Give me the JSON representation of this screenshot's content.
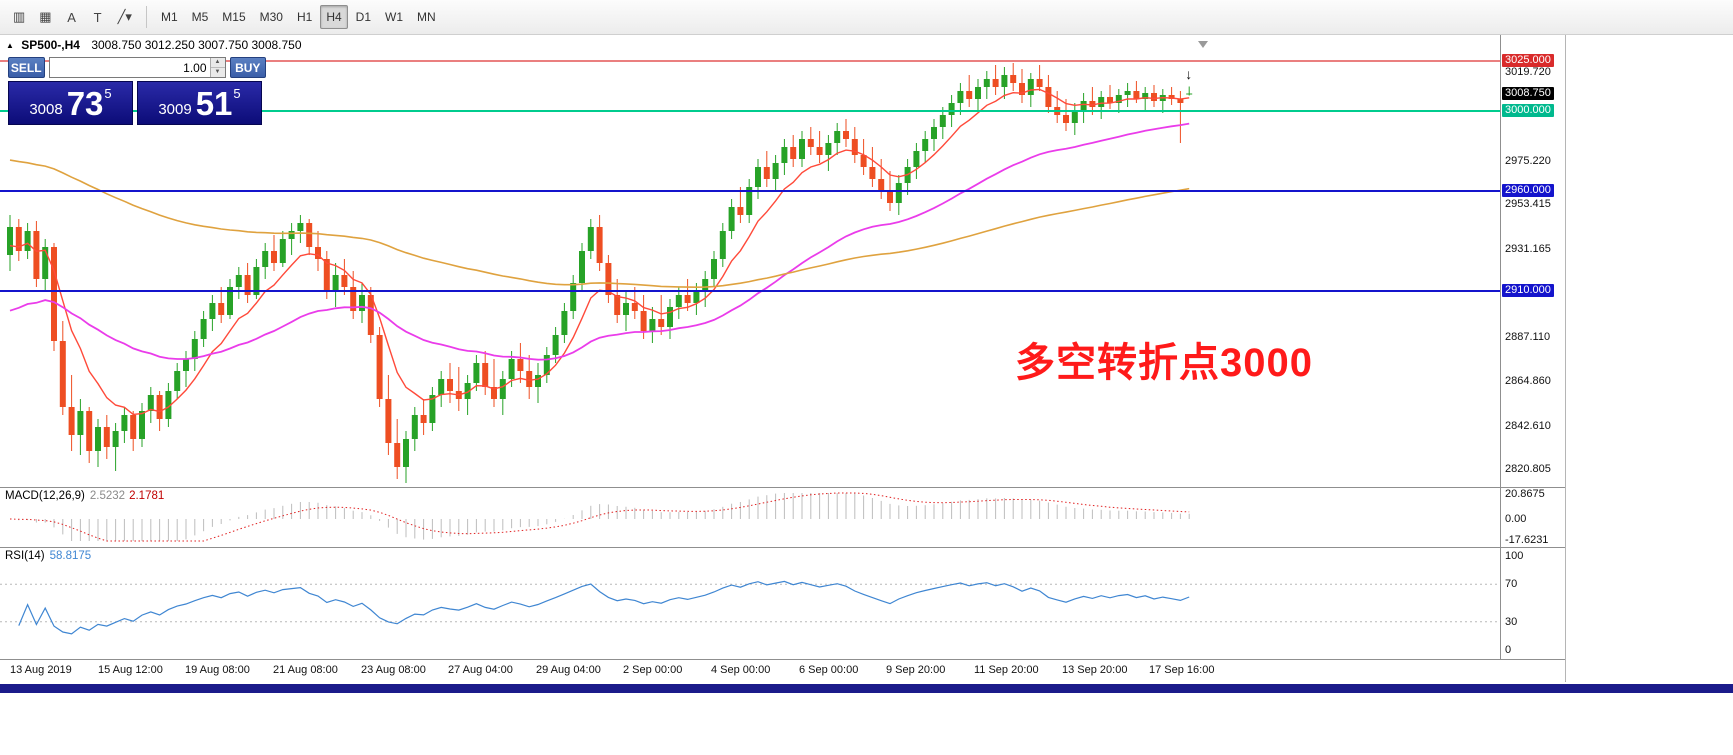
{
  "toolbar": {
    "tools": [
      {
        "name": "chart-type-icon",
        "glyph": "▥"
      },
      {
        "name": "grid-icon",
        "glyph": "▦"
      },
      {
        "name": "annotation-a-icon",
        "glyph": "A"
      },
      {
        "name": "text-tool-icon",
        "glyph": "T"
      },
      {
        "name": "draw-tools-icon",
        "glyph": "╱▾"
      }
    ],
    "timeframes": [
      {
        "label": "M1",
        "active": false
      },
      {
        "label": "M5",
        "active": false
      },
      {
        "label": "M15",
        "active": false
      },
      {
        "label": "M30",
        "active": false
      },
      {
        "label": "H1",
        "active": false
      },
      {
        "label": "H4",
        "active": true
      },
      {
        "label": "D1",
        "active": false
      },
      {
        "label": "W1",
        "active": false
      },
      {
        "label": "MN",
        "active": false
      }
    ]
  },
  "chart_header": {
    "expand_icon": "▲",
    "symbol_tf": "SP500-,H4",
    "ohlc": "3008.750 3012.250 3007.750 3008.750"
  },
  "trade_panel": {
    "sell_label": "SELL",
    "buy_label": "BUY",
    "volume": "1.00",
    "spinner_up": "▲",
    "spinner_down": "▼",
    "sell_price_small": "3008",
    "sell_price_big": "73",
    "sell_price_sup": "5",
    "buy_price_small": "3009",
    "buy_price_big": "51",
    "buy_price_sup": "5"
  },
  "annotation": {
    "text": "多空转折点3000",
    "color": "#ff1a1a"
  },
  "indicators": {
    "macd": {
      "name": "MACD(12,26,9)",
      "main": "2.5232",
      "signal": "2.1781",
      "axis": {
        "max": "20.8675",
        "zero": "0.00",
        "min": "-17.6231"
      },
      "max_val": 20.8675,
      "min_val": -17.6231
    },
    "rsi": {
      "name": "RSI(14)",
      "value": "58.8175",
      "axis": [
        "100",
        "70",
        "30",
        "0"
      ],
      "levels": [
        70,
        30
      ]
    }
  },
  "chart_data": {
    "type": "candlestick",
    "symbol": "SP500-",
    "timeframe": "H4",
    "ylim": [
      2812,
      3038
    ],
    "x0": 10,
    "spacing": 8.8,
    "candle_width": 6,
    "colors": {
      "up": "#27a227",
      "down": "#ee4e22"
    },
    "hlines": [
      {
        "price": 3025.0,
        "label": "3025.000",
        "color": "#dd3333",
        "width": 1.3,
        "tag_bg": "#d92b2b"
      },
      {
        "price": 3000.0,
        "label": "3000.000",
        "color": "#00cc8e",
        "width": 2,
        "tag_bg": "#00b98e"
      },
      {
        "price": 2960.0,
        "label": "2960.000",
        "color": "#1414cc",
        "width": 2,
        "tag_bg": "#1414cc"
      },
      {
        "price": 2910.0,
        "label": "2910.000",
        "color": "#1414cc",
        "width": 2,
        "tag_bg": "#1414cc"
      }
    ],
    "current_price": {
      "price": 3008.75,
      "label": "3008.750",
      "tag_bg": "#000000"
    },
    "axis_labels": [
      {
        "price": 3019.72,
        "label": "3019.720"
      },
      {
        "price": 2975.22,
        "label": "2975.220"
      },
      {
        "price": 2953.415,
        "label": "2953.415"
      },
      {
        "price": 2931.165,
        "label": "2931.165"
      },
      {
        "price": 2887.11,
        "label": "2887.110"
      },
      {
        "price": 2864.86,
        "label": "2864.860"
      },
      {
        "price": 2842.61,
        "label": "2842.610"
      },
      {
        "price": 2820.805,
        "label": "2820.805"
      }
    ],
    "mas": [
      {
        "name": "fast-ma",
        "period": 8,
        "seed": 2930,
        "color": "#ff4a3a",
        "width": 1.4
      },
      {
        "name": "mid-ma",
        "period": 40,
        "seed": 2898,
        "color": "#ea3cea",
        "width": 1.8
      },
      {
        "name": "slow-ma",
        "period": 120,
        "seed": 2976,
        "color": "#dfa23f",
        "width": 1.6
      }
    ],
    "marker": {
      "glyph": "↓",
      "index": 134,
      "price": 3016
    },
    "candles": [
      [
        2928,
        2948,
        2920,
        2942
      ],
      [
        2942,
        2946,
        2925,
        2930
      ],
      [
        2930,
        2944,
        2926,
        2940
      ],
      [
        2940,
        2945,
        2912,
        2916
      ],
      [
        2916,
        2936,
        2910,
        2932
      ],
      [
        2932,
        2934,
        2880,
        2885
      ],
      [
        2885,
        2895,
        2848,
        2852
      ],
      [
        2852,
        2868,
        2830,
        2838
      ],
      [
        2838,
        2856,
        2828,
        2850
      ],
      [
        2850,
        2852,
        2824,
        2830
      ],
      [
        2830,
        2846,
        2822,
        2842
      ],
      [
        2842,
        2848,
        2826,
        2832
      ],
      [
        2832,
        2844,
        2820,
        2840
      ],
      [
        2840,
        2852,
        2834,
        2848
      ],
      [
        2848,
        2850,
        2830,
        2836
      ],
      [
        2836,
        2854,
        2832,
        2850
      ],
      [
        2850,
        2862,
        2844,
        2858
      ],
      [
        2858,
        2860,
        2840,
        2846
      ],
      [
        2846,
        2864,
        2842,
        2860
      ],
      [
        2860,
        2874,
        2856,
        2870
      ],
      [
        2870,
        2880,
        2862,
        2876
      ],
      [
        2876,
        2890,
        2870,
        2886
      ],
      [
        2886,
        2900,
        2882,
        2896
      ],
      [
        2896,
        2908,
        2890,
        2904
      ],
      [
        2904,
        2912,
        2894,
        2898
      ],
      [
        2898,
        2916,
        2896,
        2912
      ],
      [
        2912,
        2922,
        2906,
        2918
      ],
      [
        2918,
        2924,
        2904,
        2908
      ],
      [
        2908,
        2926,
        2906,
        2922
      ],
      [
        2922,
        2934,
        2916,
        2930
      ],
      [
        2930,
        2938,
        2920,
        2924
      ],
      [
        2924,
        2940,
        2922,
        2936
      ],
      [
        2936,
        2944,
        2928,
        2940
      ],
      [
        2940,
        2948,
        2934,
        2944
      ],
      [
        2944,
        2946,
        2928,
        2932
      ],
      [
        2932,
        2940,
        2920,
        2926
      ],
      [
        2926,
        2930,
        2906,
        2910
      ],
      [
        2910,
        2924,
        2902,
        2918
      ],
      [
        2918,
        2926,
        2908,
        2912
      ],
      [
        2912,
        2920,
        2896,
        2900
      ],
      [
        2900,
        2914,
        2894,
        2908
      ],
      [
        2908,
        2912,
        2884,
        2888
      ],
      [
        2888,
        2892,
        2852,
        2856
      ],
      [
        2856,
        2868,
        2828,
        2834
      ],
      [
        2834,
        2846,
        2816,
        2822
      ],
      [
        2822,
        2840,
        2814,
        2836
      ],
      [
        2836,
        2852,
        2830,
        2848
      ],
      [
        2848,
        2856,
        2838,
        2844
      ],
      [
        2844,
        2862,
        2840,
        2858
      ],
      [
        2858,
        2870,
        2852,
        2866
      ],
      [
        2866,
        2874,
        2854,
        2860
      ],
      [
        2860,
        2872,
        2850,
        2856
      ],
      [
        2856,
        2868,
        2848,
        2864
      ],
      [
        2864,
        2878,
        2860,
        2874
      ],
      [
        2874,
        2880,
        2858,
        2862
      ],
      [
        2862,
        2876,
        2852,
        2856
      ],
      [
        2856,
        2870,
        2848,
        2866
      ],
      [
        2866,
        2880,
        2862,
        2876
      ],
      [
        2876,
        2884,
        2864,
        2870
      ],
      [
        2870,
        2878,
        2856,
        2862
      ],
      [
        2862,
        2874,
        2854,
        2868
      ],
      [
        2868,
        2882,
        2864,
        2878
      ],
      [
        2878,
        2892,
        2874,
        2888
      ],
      [
        2888,
        2904,
        2884,
        2900
      ],
      [
        2900,
        2918,
        2896,
        2914
      ],
      [
        2914,
        2934,
        2910,
        2930
      ],
      [
        2930,
        2946,
        2926,
        2942
      ],
      [
        2942,
        2948,
        2920,
        2924
      ],
      [
        2924,
        2928,
        2904,
        2908
      ],
      [
        2908,
        2916,
        2894,
        2898
      ],
      [
        2898,
        2910,
        2890,
        2904
      ],
      [
        2904,
        2912,
        2896,
        2900
      ],
      [
        2900,
        2908,
        2886,
        2890
      ],
      [
        2890,
        2902,
        2884,
        2896
      ],
      [
        2896,
        2908,
        2888,
        2892
      ],
      [
        2892,
        2906,
        2886,
        2902
      ],
      [
        2902,
        2912,
        2896,
        2908
      ],
      [
        2908,
        2916,
        2900,
        2904
      ],
      [
        2904,
        2914,
        2898,
        2910
      ],
      [
        2910,
        2920,
        2902,
        2916
      ],
      [
        2916,
        2930,
        2912,
        2926
      ],
      [
        2926,
        2944,
        2922,
        2940
      ],
      [
        2940,
        2956,
        2936,
        2952
      ],
      [
        2952,
        2962,
        2944,
        2948
      ],
      [
        2948,
        2966,
        2944,
        2962
      ],
      [
        2962,
        2976,
        2956,
        2972
      ],
      [
        2972,
        2980,
        2962,
        2966
      ],
      [
        2966,
        2978,
        2960,
        2974
      ],
      [
        2974,
        2986,
        2968,
        2982
      ],
      [
        2982,
        2988,
        2972,
        2976
      ],
      [
        2976,
        2990,
        2972,
        2986
      ],
      [
        2986,
        2992,
        2978,
        2982
      ],
      [
        2982,
        2990,
        2974,
        2978
      ],
      [
        2978,
        2988,
        2970,
        2984
      ],
      [
        2984,
        2994,
        2978,
        2990
      ],
      [
        2990,
        2996,
        2982,
        2986
      ],
      [
        2986,
        2992,
        2974,
        2978
      ],
      [
        2978,
        2986,
        2968,
        2972
      ],
      [
        2972,
        2982,
        2962,
        2966
      ],
      [
        2966,
        2976,
        2956,
        2960
      ],
      [
        2960,
        2970,
        2950,
        2954
      ],
      [
        2954,
        2968,
        2948,
        2964
      ],
      [
        2964,
        2976,
        2958,
        2972
      ],
      [
        2972,
        2984,
        2966,
        2980
      ],
      [
        2980,
        2990,
        2974,
        2986
      ],
      [
        2986,
        2996,
        2980,
        2992
      ],
      [
        2992,
        3002,
        2986,
        2998
      ],
      [
        2998,
        3008,
        2992,
        3004
      ],
      [
        3004,
        3014,
        2998,
        3010
      ],
      [
        3010,
        3018,
        3002,
        3006
      ],
      [
        3006,
        3016,
        3000,
        3012
      ],
      [
        3012,
        3020,
        3006,
        3016
      ],
      [
        3016,
        3023,
        3008,
        3012
      ],
      [
        3012,
        3022,
        3006,
        3018
      ],
      [
        3018,
        3024,
        3010,
        3014
      ],
      [
        3014,
        3021,
        3004,
        3008
      ],
      [
        3008,
        3019,
        3002,
        3016
      ],
      [
        3016,
        3023,
        3010,
        3012
      ],
      [
        3012,
        3018,
        2999,
        3002
      ],
      [
        3002,
        3010,
        2994,
        2998
      ],
      [
        2998,
        3006,
        2990,
        2994
      ],
      [
        2994,
        3004,
        2988,
        3000
      ],
      [
        3000,
        3009,
        2994,
        3005
      ],
      [
        3005,
        3012,
        2998,
        3002
      ],
      [
        3002,
        3010,
        2996,
        3007
      ],
      [
        3007,
        3013,
        3001,
        3004
      ],
      [
        3004,
        3011,
        2999,
        3008
      ],
      [
        3008,
        3014,
        3002,
        3010
      ],
      [
        3010,
        3015,
        3004,
        3006
      ],
      [
        3006,
        3012,
        3000,
        3009
      ],
      [
        3009,
        3013,
        3002,
        3005
      ],
      [
        3005,
        3011,
        2999,
        3008
      ],
      [
        3008,
        3012,
        3003,
        3006
      ],
      [
        3006,
        3010,
        2984,
        3004
      ],
      [
        3008.75,
        3012.25,
        3007.75,
        3008.75
      ]
    ],
    "time_labels": [
      "13 Aug 2019",
      "15 Aug 12:00",
      "19 Aug 08:00",
      "21 Aug 08:00",
      "23 Aug 08:00",
      "27 Aug 04:00",
      "29 Aug 04:00",
      "2 Sep 00:00",
      "4 Sep 00:00",
      "6 Sep 00:00",
      "9 Sep 20:00",
      "11 Sep 20:00",
      "13 Sep 20:00",
      "17 Sep 16:00"
    ]
  }
}
